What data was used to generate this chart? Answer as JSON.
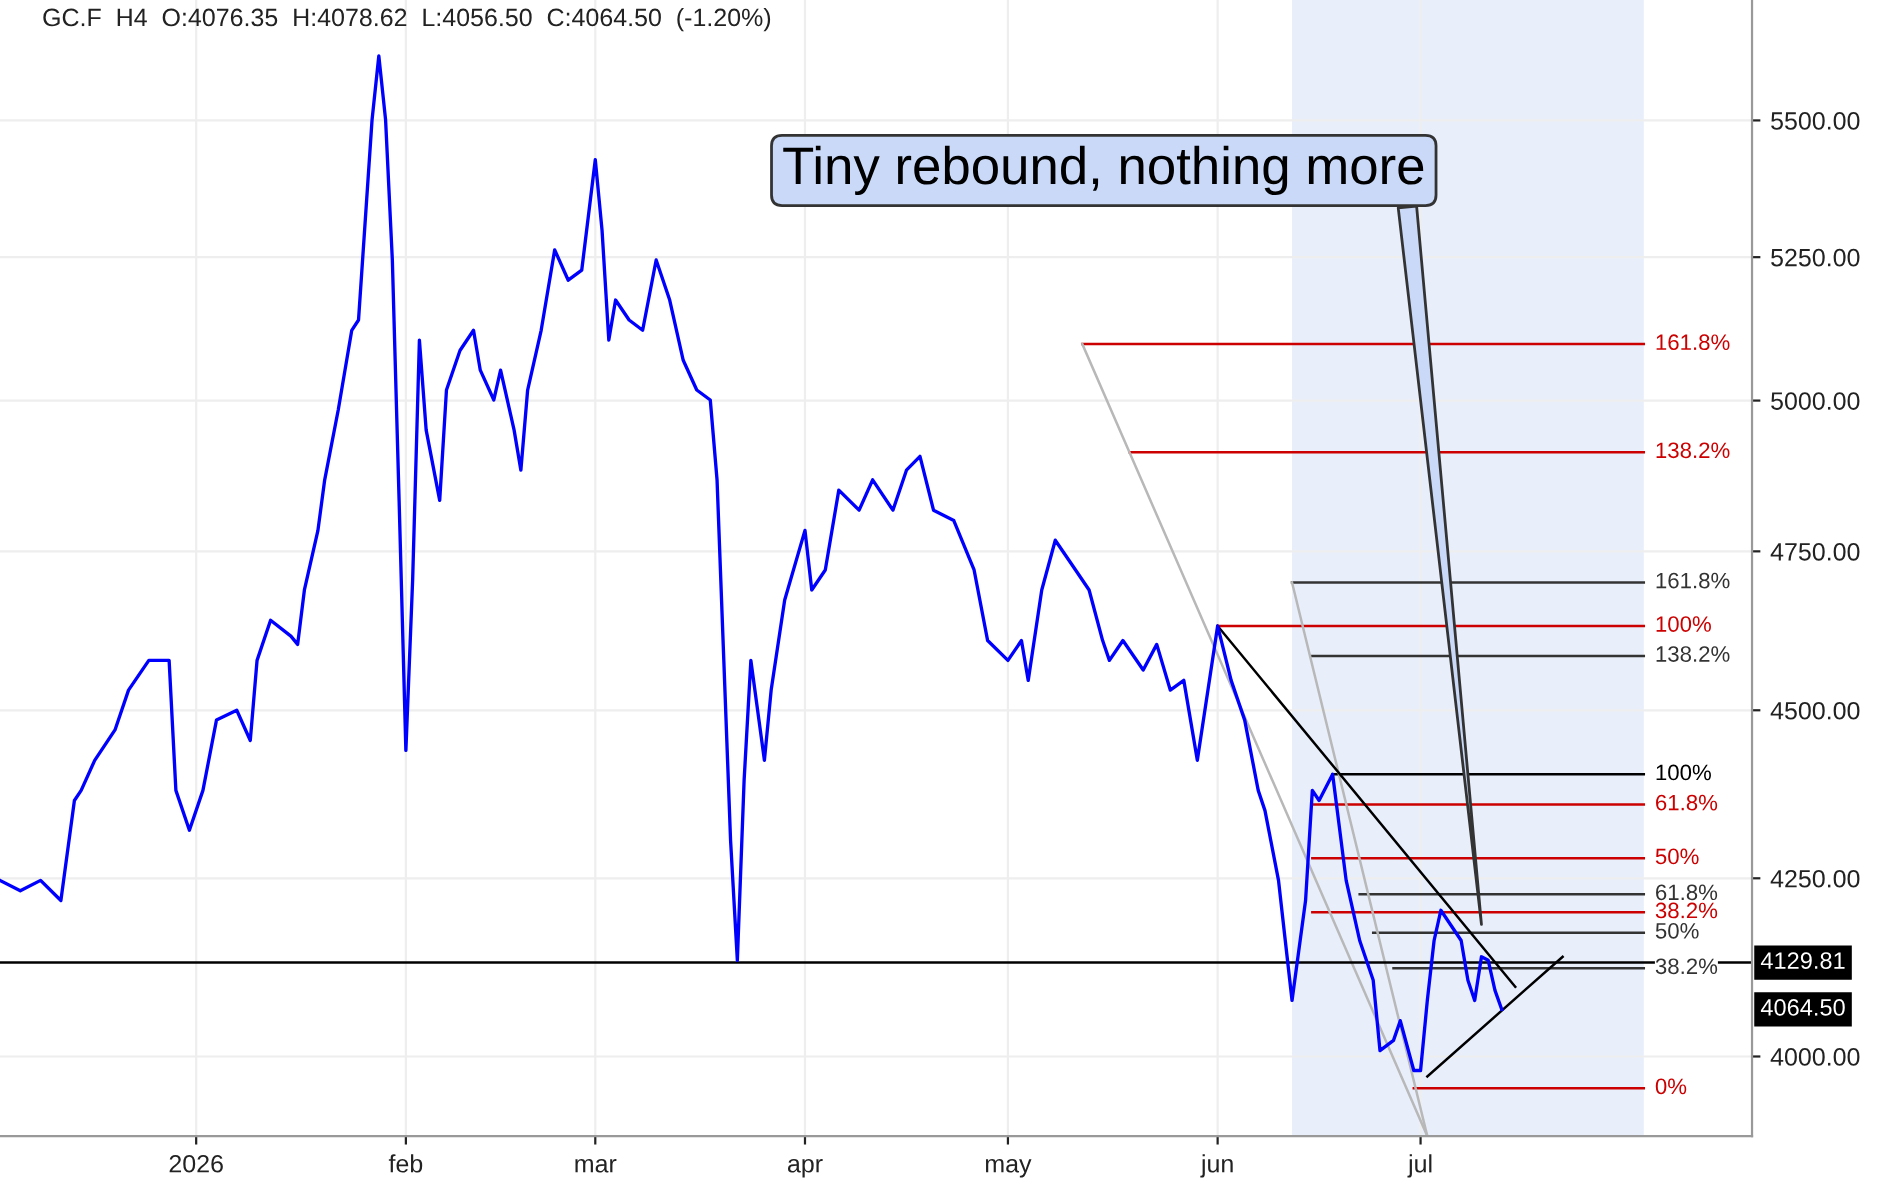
{
  "chart_data": {
    "type": "line",
    "title": "GC.F  H4  O:4076.35  H:4078.62  L:4056.50  C:4064.50  (-1.20%)",
    "xlim": [
      "2025-12-03",
      "2026-08-19"
    ],
    "ylim": [
      3893,
      5730
    ],
    "log": true,
    "xticks": [
      {
        "value": "2026-01-01",
        "label": "2026"
      },
      {
        "value": "2026-02-01",
        "label": "feb"
      },
      {
        "value": "2026-03-01",
        "label": "mar"
      },
      {
        "value": "2026-04-01",
        "label": "apr"
      },
      {
        "value": "2026-05-01",
        "label": "may"
      },
      {
        "value": "2026-06-01",
        "label": "jun"
      },
      {
        "value": "2026-07-01",
        "label": "jul"
      }
    ],
    "yticks": [
      {
        "value": 4000,
        "label": "4000.00"
      },
      {
        "value": 4250,
        "label": "4250.00"
      },
      {
        "value": 4500,
        "label": "4500.00"
      },
      {
        "value": 4750,
        "label": "4750.00"
      },
      {
        "value": 5000,
        "label": "5000.00"
      },
      {
        "value": 5250,
        "label": "5250.00"
      },
      {
        "value": 5500,
        "label": "5500.00"
      }
    ],
    "grid": true,
    "marker": "none",
    "line_style": "solid",
    "series": [
      {
        "color": "#0000ff",
        "x": [
          "2025-12-03",
          "2025-12-06",
          "2025-12-09",
          "2025-12-12",
          "2025-12-14",
          "2025-12-15",
          "2025-12-17",
          "2025-12-20",
          "2025-12-22",
          "2025-12-25",
          "2025-12-28",
          "2025-12-29",
          "2025-12-31",
          "2026-01-02",
          "2026-01-04",
          "2026-01-07",
          "2026-01-09",
          "2026-01-10",
          "2026-01-12",
          "2026-01-15",
          "2026-01-16",
          "2026-01-17",
          "2026-01-19",
          "2026-01-20",
          "2026-01-22",
          "2026-01-24",
          "2026-01-25",
          "2026-01-26",
          "2026-01-27",
          "2026-01-28",
          "2026-01-29",
          "2026-01-30",
          "2026-01-31",
          "2026-02-01",
          "2026-02-02",
          "2026-02-03",
          "2026-02-04",
          "2026-02-06",
          "2026-02-07",
          "2026-02-09",
          "2026-02-11",
          "2026-02-12",
          "2026-02-14",
          "2026-02-15",
          "2026-02-17",
          "2026-02-18",
          "2026-02-19",
          "2026-02-21",
          "2026-02-23",
          "2026-02-25",
          "2026-02-27",
          "2026-03-01",
          "2026-03-02",
          "2026-03-03",
          "2026-03-04",
          "2026-03-06",
          "2026-03-08",
          "2026-03-10",
          "2026-03-12",
          "2026-03-14",
          "2026-03-16",
          "2026-03-18",
          "2026-03-19",
          "2026-03-20",
          "2026-03-21",
          "2026-03-22",
          "2026-03-23",
          "2026-03-24",
          "2026-03-26",
          "2026-03-27",
          "2026-03-29",
          "2026-04-01",
          "2026-04-02",
          "2026-04-04",
          "2026-04-06",
          "2026-04-09",
          "2026-04-11",
          "2026-04-14",
          "2026-04-16",
          "2026-04-18",
          "2026-04-20",
          "2026-04-23",
          "2026-04-26",
          "2026-04-28",
          "2026-05-01",
          "2026-05-03",
          "2026-05-04",
          "2026-05-06",
          "2026-05-08",
          "2026-05-11",
          "2026-05-13",
          "2026-05-15",
          "2026-05-16",
          "2026-05-18",
          "2026-05-21",
          "2026-05-23",
          "2026-05-25",
          "2026-05-27",
          "2026-05-29",
          "2026-06-01",
          "2026-06-03",
          "2026-06-05",
          "2026-06-07",
          "2026-06-08",
          "2026-06-10",
          "2026-06-11",
          "2026-06-12",
          "2026-06-14",
          "2026-06-15",
          "2026-06-16",
          "2026-06-18",
          "2026-06-20",
          "2026-06-21",
          "2026-06-22",
          "2026-06-24",
          "2026-06-25",
          "2026-06-27",
          "2026-06-28",
          "2026-06-30",
          "2026-07-01",
          "2026-07-02",
          "2026-07-03",
          "2026-07-04",
          "2026-07-07",
          "2026-07-08",
          "2026-07-09",
          "2026-07-10",
          "2026-07-11",
          "2026-07-12",
          "2026-07-13"
        ],
        "values": [
          4247,
          4232,
          4247,
          4218,
          4364,
          4379,
          4424,
          4470,
          4531,
          4577,
          4577,
          4379,
          4320,
          4379,
          4485,
          4500,
          4454,
          4577,
          4640,
          4615,
          4602,
          4688,
          4784,
          4867,
          4984,
          5121,
          5139,
          5317,
          5501,
          5622,
          5501,
          5245,
          4833,
          4439,
          4704,
          5104,
          4950,
          4833,
          5018,
          5086,
          5121,
          5052,
          5001,
          5052,
          4950,
          4883,
          5018,
          5121,
          5263,
          5209,
          5227,
          5427,
          5298,
          5104,
          5174,
          5139,
          5121,
          5245,
          5174,
          5069,
          5018,
          5001,
          4867,
          4577,
          4305,
          4133,
          4394,
          4577,
          4424,
          4531,
          4672,
          4784,
          4688,
          4720,
          4850,
          4817,
          4867,
          4817,
          4883,
          4906,
          4817,
          4800,
          4720,
          4608,
          4577,
          4608,
          4546,
          4688,
          4768,
          4720,
          4688,
          4608,
          4577,
          4608,
          4562,
          4602,
          4531,
          4546,
          4424,
          4631,
          4546,
          4485,
          4379,
          4349,
          4247,
          4161,
          4077,
          4218,
          4379,
          4364,
          4403,
          4247,
          4204,
          4161,
          4105,
          4008,
          4022,
          4049,
          3981,
          3981,
          4077,
          4161,
          4204,
          4161,
          4105,
          4077,
          4138,
          4133,
          4091,
          4064.5
        ]
      },
      {
        "name": "161.8%",
        "color": "#cc0000",
        "x": [
          "2026-05-12",
          "2026-08-03"
        ],
        "values": [
          5097,
          5097
        ]
      },
      {
        "name": "138.2%",
        "color": "#cc0000",
        "x": [
          "2026-05-19",
          "2026-08-03"
        ],
        "values": [
          4913,
          4913
        ]
      },
      {
        "name": "100%",
        "color": "#cc0000",
        "x": [
          "2026-06-01",
          "2026-08-03"
        ],
        "values": [
          4631,
          4631
        ]
      },
      {
        "name": "61.8%",
        "color": "#cc0000",
        "x": [
          "2026-06-15",
          "2026-08-03"
        ],
        "values": [
          4358,
          4358
        ]
      },
      {
        "name": "50%",
        "color": "#cc0000",
        "x": [
          "2026-06-15",
          "2026-08-03"
        ],
        "values": [
          4279,
          4279
        ]
      },
      {
        "name": "38.2%",
        "color": "#cc0000",
        "x": [
          "2026-06-15",
          "2026-08-03"
        ],
        "values": [
          4201,
          4201
        ]
      },
      {
        "name": "0%",
        "color": "#cc0000",
        "x": [
          "2026-06-30",
          "2026-08-03"
        ],
        "values": [
          3957,
          3957
        ]
      },
      {
        "name": "161.8%",
        "color": "#333333",
        "x": [
          "2026-06-12",
          "2026-08-03"
        ],
        "values": [
          4700,
          4700
        ]
      },
      {
        "name": "138.2%",
        "color": "#333333",
        "x": [
          "2026-06-15",
          "2026-08-03"
        ],
        "values": [
          4584,
          4584
        ]
      },
      {
        "name": "100%",
        "color": "#000000",
        "x": [
          "2026-06-18",
          "2026-08-03"
        ],
        "values": [
          4403,
          4403
        ]
      },
      {
        "name": "61.8%",
        "color": "#333333",
        "x": [
          "2026-06-22",
          "2026-08-03"
        ],
        "values": [
          4227,
          4227
        ]
      },
      {
        "name": "50%",
        "color": "#333333",
        "x": [
          "2026-06-24",
          "2026-08-03"
        ],
        "values": [
          4172,
          4172
        ]
      },
      {
        "name": "38.2%",
        "color": "#333333",
        "x": [
          "2026-06-27",
          "2026-08-03"
        ],
        "values": [
          4122,
          4122
        ]
      },
      {
        "color": "#b8b8b8",
        "x": [
          "2026-05-12",
          "2026-07-02"
        ],
        "values": [
          5097,
          3893
        ]
      },
      {
        "color": "#b8b8b8",
        "x": [
          "2026-06-12",
          "2026-07-02"
        ],
        "values": [
          4700,
          3893
        ]
      },
      {
        "color": "#000000",
        "x": [
          "2026-06-01",
          "2026-07-15"
        ],
        "values": [
          4631,
          4096
        ]
      },
      {
        "color": "#000000",
        "x": [
          "2026-07-02",
          "2026-07-22"
        ],
        "values": [
          3973,
          4138
        ]
      }
    ],
    "bands": [
      {
        "axis": "x",
        "from": "2026-06-12",
        "to": "2026-08-03",
        "color": "#e8effb"
      }
    ],
    "ref_lines": [
      {
        "axis": "y",
        "value": 4129.81,
        "label": "4129.81",
        "color": "#000000"
      }
    ],
    "annotations": [
      {
        "text": "Tiny rebound, nothing more",
        "x": "2026-07-10",
        "y": 4184
      },
      "4064.50"
    ]
  }
}
